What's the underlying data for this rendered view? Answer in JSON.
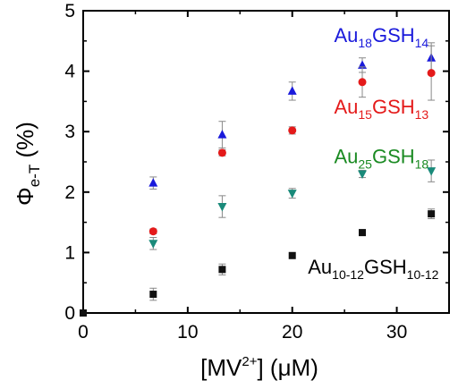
{
  "chart_data": {
    "type": "scatter",
    "xlabel": {
      "base": "[MV",
      "sup": "2+",
      "rest": "] (μM)"
    },
    "ylabel": {
      "main": "Φ",
      "sub": "e-T",
      "unit": " (%)"
    },
    "xlim": [
      0,
      35
    ],
    "ylim": [
      0,
      5
    ],
    "xticks": [
      0,
      10,
      20,
      30
    ],
    "yticks": [
      0,
      1,
      2,
      3,
      4,
      5
    ],
    "grid": false,
    "series": [
      {
        "name": {
          "a": "Au",
          "as": "18",
          "b": "GSH",
          "bs": "14"
        },
        "marker": "triangle-up",
        "color": "#1a1adb",
        "points": [
          [
            6.7,
            2.15
          ],
          [
            13.3,
            2.95
          ],
          [
            20.0,
            3.67
          ],
          [
            26.7,
            4.1
          ],
          [
            33.3,
            4.22
          ]
        ],
        "errors": [
          0.1,
          0.22,
          0.15,
          0.12,
          0.25
        ]
      },
      {
        "name": {
          "a": "Au",
          "as": "15",
          "b": "GSH",
          "bs": "13"
        },
        "marker": "circle",
        "color": "#e41a1a",
        "points": [
          [
            6.7,
            1.35
          ],
          [
            13.3,
            2.65
          ],
          [
            20.0,
            3.02
          ],
          [
            26.7,
            3.82
          ],
          [
            33.3,
            3.97
          ]
        ],
        "errors": [
          0.04,
          0.05,
          0.06,
          0.25,
          0.45
        ]
      },
      {
        "name": {
          "a": "Au",
          "as": "25",
          "b": "GSH",
          "bs": "18"
        },
        "marker": "triangle-down",
        "color": "#1a8a7a",
        "points": [
          [
            6.7,
            1.15
          ],
          [
            13.3,
            1.76
          ],
          [
            20.0,
            1.98
          ],
          [
            26.7,
            2.3
          ],
          [
            33.3,
            2.35
          ]
        ],
        "errors": [
          0.1,
          0.18,
          0.08,
          0.06,
          0.18
        ]
      },
      {
        "name": {
          "a": "Au",
          "as": "10-12",
          "b": "GSH",
          "bs": "10-12"
        },
        "marker": "square",
        "color": "#111111",
        "points": [
          [
            0.0,
            0.0
          ],
          [
            6.7,
            0.31
          ],
          [
            13.3,
            0.72
          ],
          [
            20.0,
            0.95
          ],
          [
            26.7,
            1.33
          ],
          [
            33.3,
            1.64
          ]
        ],
        "errors": [
          0,
          0.1,
          0.09,
          0,
          0,
          0.08
        ]
      }
    ],
    "annotations": [
      {
        "series": 0,
        "color": "#1a1adb",
        "x": 24.0,
        "y": 4.48
      },
      {
        "series": 1,
        "color": "#e41a1a",
        "x": 24.0,
        "y": 3.3
      },
      {
        "series": 2,
        "color": "#1a8a22",
        "x": 24.0,
        "y": 2.48
      },
      {
        "series": 3,
        "color": "#000000",
        "x": 21.5,
        "y": 0.65
      }
    ],
    "colors": {
      "axis": "#000000",
      "errorbar": "#888888"
    }
  }
}
